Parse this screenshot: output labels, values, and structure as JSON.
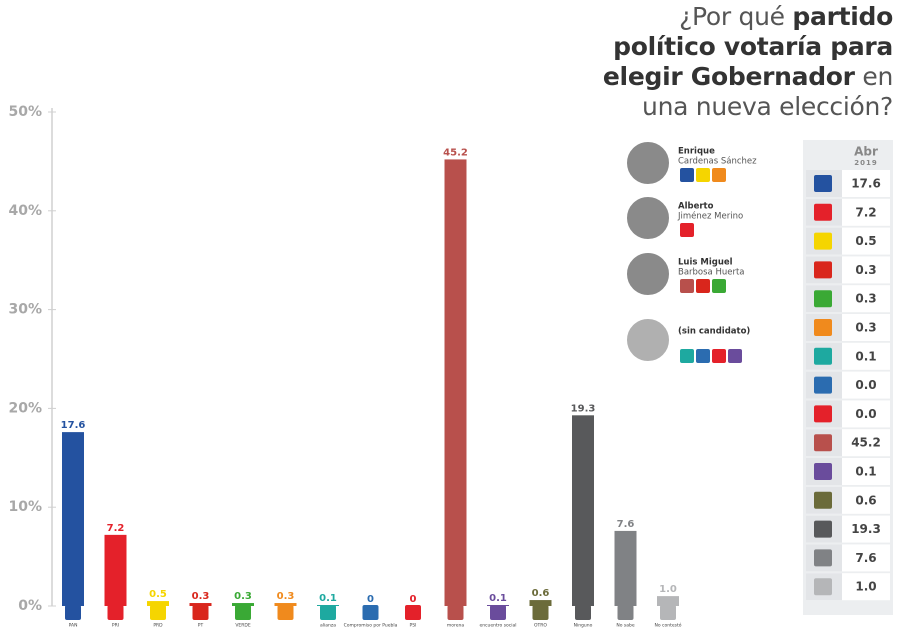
{
  "chart_data": {
    "type": "bar",
    "categories": [
      "PAN",
      "PRI",
      "PRD",
      "PT",
      "VERDE",
      null,
      "alianza",
      "Compromiso por Puebla",
      "PSI",
      "morena",
      "encuentro social",
      "OTRO",
      "Ninguno",
      "No sabe",
      "No contestó"
    ],
    "values": [
      17.6,
      7.2,
      0.5,
      0.3,
      0.3,
      0.3,
      0.1,
      0,
      0,
      45.2,
      0.1,
      0.6,
      19.3,
      7.6,
      1.0
    ],
    "value_labels": [
      "17.6",
      "7.2",
      "0.5",
      "0.3",
      "0.3",
      "0.3",
      "0.1",
      "0",
      "0",
      "45.2",
      "0.1",
      "0.6",
      "19.3",
      "7.6",
      "1.0"
    ],
    "colors": [
      "#2452a0",
      "#e4212a",
      "#f5d500",
      "#d9261c",
      "#3aa935",
      "#f08a1d",
      "#1ea9a0",
      "#2b6cb0",
      "#e4212a",
      "#b8504c",
      "#6a4c9c",
      "#6b6b3a",
      "#58595b",
      "#808285",
      "#b5b6b8"
    ],
    "ylim": [
      0,
      50
    ],
    "yticks": [
      {
        "value": 0,
        "label": "0%"
      },
      {
        "value": 10,
        "label": "10%"
      },
      {
        "value": 20,
        "label": "20%"
      },
      {
        "value": 30,
        "label": "30%"
      },
      {
        "value": 40,
        "label": "40%"
      },
      {
        "value": 50,
        "label": "50%"
      }
    ],
    "grid": false
  },
  "title_lines": [
    [
      {
        "text": "¿Por qué ",
        "bold": false
      },
      {
        "text": "partido",
        "bold": true
      }
    ],
    [
      {
        "text": "político votaría para",
        "bold": true
      }
    ],
    [
      {
        "text": "elegir Gobernador",
        "bold": true
      },
      {
        "text": " en",
        "bold": false
      }
    ],
    [
      {
        "text": "una nueva elección?",
        "bold": false
      }
    ]
  ],
  "candidates": [
    {
      "first": "Enrique",
      "last": "Cardenas Sánchez"
    },
    {
      "first": "Alberto",
      "last": "Jiménez Merino"
    },
    {
      "first": "Luis Miguel",
      "last": "Barbosa Huerta"
    },
    {
      "first": "(sin candidato)"
    }
  ],
  "table": {
    "header": "Abr",
    "subheader": "2019",
    "rows": [
      "17.6",
      "7.2",
      "0.5",
      "0.3",
      "0.3",
      "0.3",
      "0.1",
      "0.0",
      "0.0",
      "45.2",
      "0.1",
      "0.6",
      "19.3",
      "7.6",
      "1.0"
    ]
  }
}
